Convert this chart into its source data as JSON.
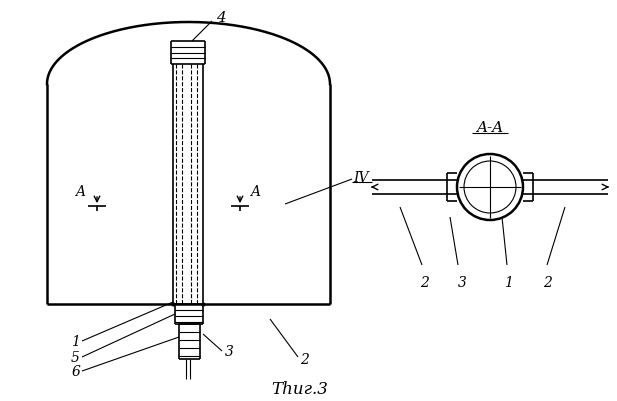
{
  "bg_color": "#ffffff",
  "line_color": "#000000",
  "fig_width": 6.17,
  "fig_height": 4.02,
  "dpi": 100,
  "label_4": "4",
  "label_IV": "IV",
  "label_A_left": "A",
  "label_A_right": "A",
  "label_1_main": "1",
  "label_2_main": "2",
  "label_3_main": "3",
  "label_5_main": "5",
  "label_6_main": "6",
  "label_AA": "A-A",
  "label_2_left": "2",
  "label_3_sec": "3",
  "label_1_sec": "1",
  "label_2_right": "2",
  "fig_caption": "Τһиг.3"
}
